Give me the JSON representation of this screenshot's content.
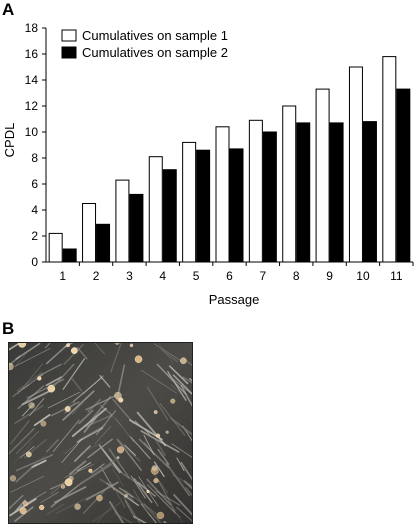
{
  "panels": {
    "a_label": "A",
    "b_label": "B"
  },
  "chart_data": {
    "type": "bar",
    "categories": [
      "1",
      "2",
      "3",
      "4",
      "5",
      "6",
      "7",
      "8",
      "9",
      "10",
      "11"
    ],
    "series": [
      {
        "name": "Cumulatives on sample 1",
        "color": "#ffffff",
        "values": [
          2.2,
          4.5,
          6.3,
          8.1,
          9.2,
          10.4,
          10.9,
          12.0,
          13.3,
          15.0,
          15.8
        ]
      },
      {
        "name": "Cumulatives on sample 2",
        "color": "#000000",
        "values": [
          1.0,
          2.9,
          5.2,
          7.1,
          8.6,
          8.7,
          10.0,
          10.7,
          10.7,
          10.8,
          13.3
        ]
      }
    ],
    "xlabel": "Passage",
    "ylabel": "CPDL",
    "ylim": [
      0,
      18
    ],
    "yticks": [
      0,
      2,
      4,
      6,
      8,
      10,
      12,
      14,
      16,
      18
    ],
    "grid": false,
    "legend": "top-left"
  },
  "micrograph": {
    "subject": "cultured cells phase-contrast micrograph"
  }
}
